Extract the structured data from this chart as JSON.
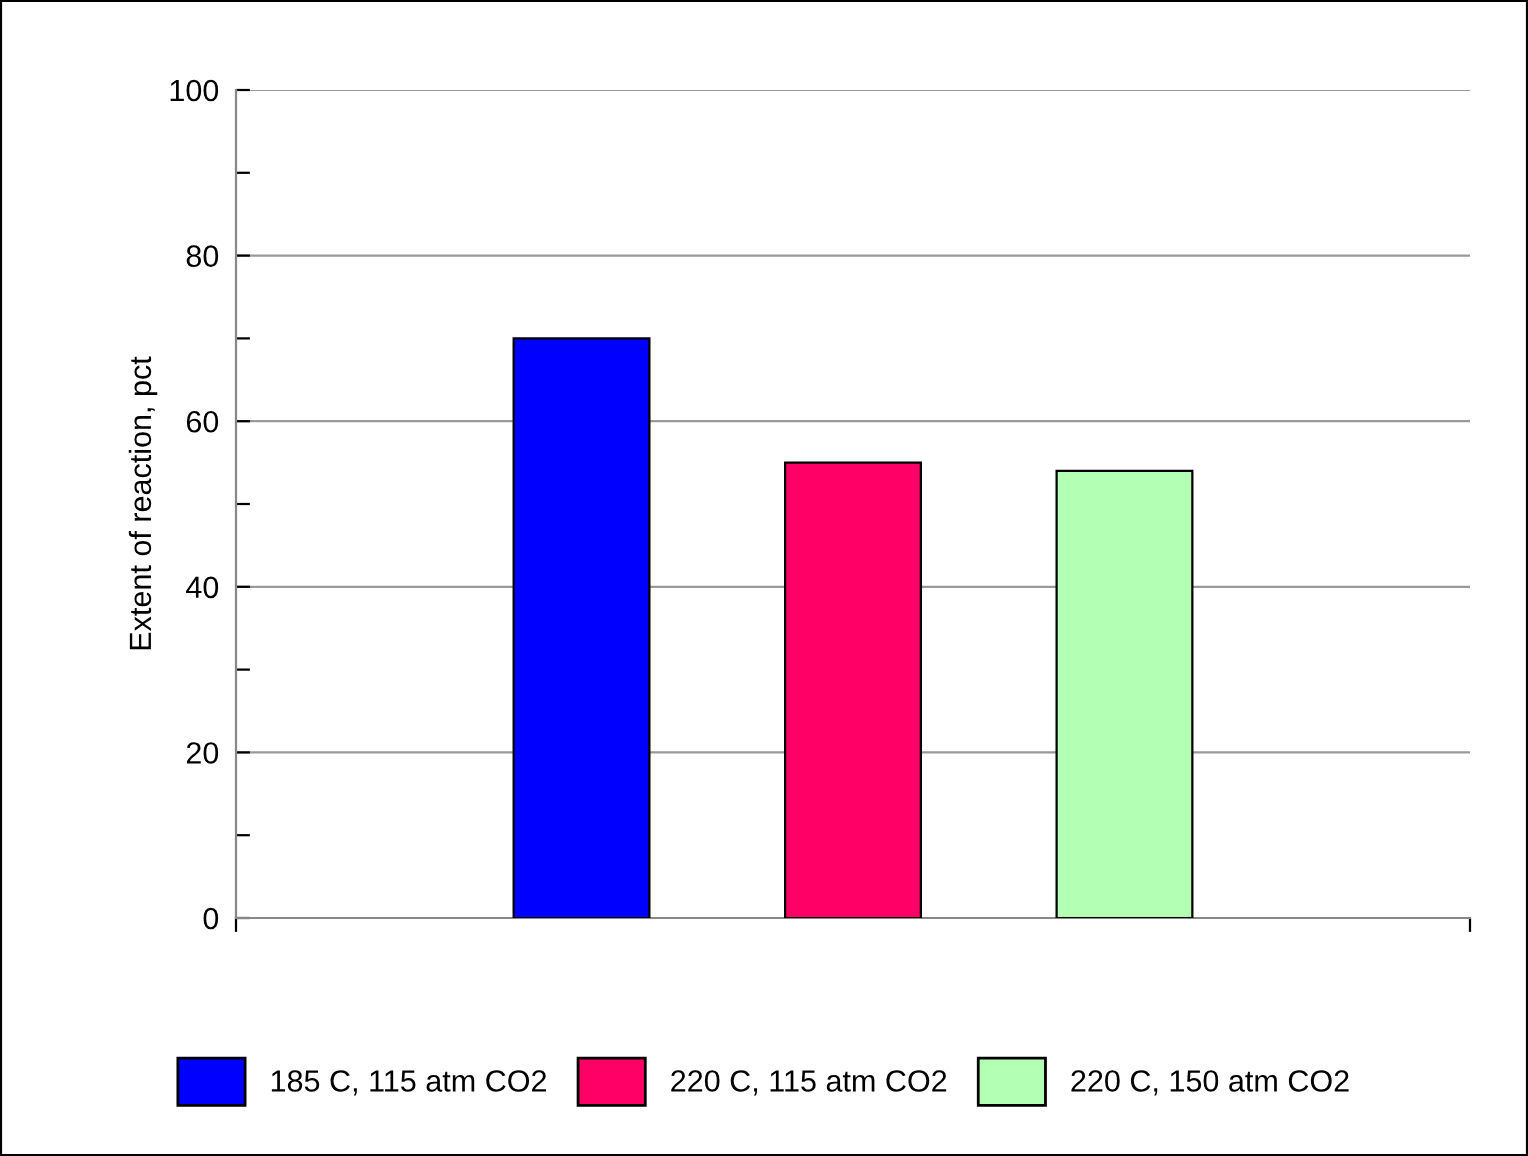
{
  "chart_data": {
    "type": "bar",
    "ylabel": "Extent of reaction, pct",
    "categories": [
      null
    ],
    "series": [
      {
        "name": "185 C, 115 atm CO2",
        "color": "#0000ff",
        "values": [
          70
        ]
      },
      {
        "name": "220 C, 115 atm CO2",
        "color": "#ff0066",
        "values": [
          55
        ]
      },
      {
        "name": "220 C, 150 atm CO2",
        "color": "#b3ffb3",
        "values": [
          54
        ]
      }
    ],
    "ylim": [
      0,
      100
    ],
    "yticks": [
      0,
      {
        "value": 10,
        "label": null
      },
      20,
      {
        "value": 30,
        "label": null
      },
      40,
      {
        "value": 50,
        "label": null
      },
      60,
      {
        "value": 70,
        "label": null
      },
      80,
      {
        "value": 90,
        "label": null
      },
      100
    ],
    "grid": "y",
    "legend": "bottom"
  }
}
